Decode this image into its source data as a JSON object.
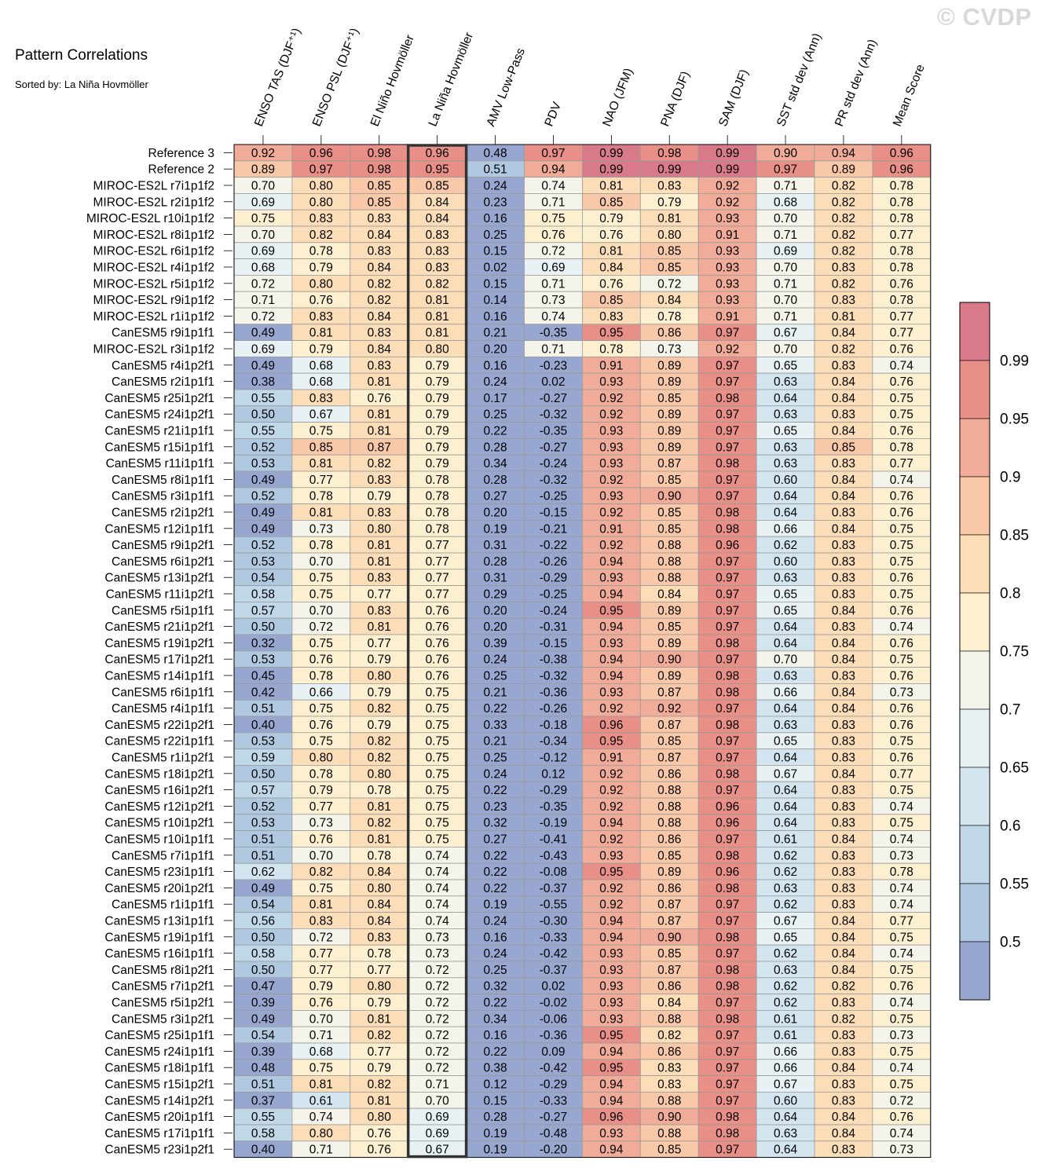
{
  "title": "Pattern Correlations",
  "subtitle": "Sorted by: La Niña Hovmöller",
  "watermark": "© CVDP",
  "chart_data": {
    "type": "heatmap",
    "highlighted_column": "La Niña Hovmöller",
    "columns": [
      "ENSO TAS (DJF⁺¹)",
      "ENSO PSL (DJF⁺¹)",
      "El Niño Hovmöller",
      "La Niña Hovmöller",
      "AMV Low-Pass",
      "PDV",
      "NAO (JFM)",
      "PNA (DJF)",
      "SAM (DJF)",
      "SST std dev (Ann)",
      "PR std dev (Ann)",
      "Mean Score"
    ],
    "rows": [
      {
        "name": "Reference 3",
        "values": [
          0.92,
          0.96,
          0.98,
          0.96,
          0.48,
          0.97,
          0.99,
          0.98,
          0.99,
          0.9,
          0.94,
          0.96
        ]
      },
      {
        "name": "Reference 2",
        "values": [
          0.89,
          0.97,
          0.98,
          0.95,
          0.51,
          0.94,
          0.99,
          0.99,
          0.99,
          0.97,
          0.89,
          0.96
        ]
      },
      {
        "name": "MIROC-ES2L r7i1p1f2",
        "values": [
          0.7,
          0.8,
          0.85,
          0.85,
          0.24,
          0.74,
          0.81,
          0.83,
          0.92,
          0.71,
          0.82,
          0.78
        ]
      },
      {
        "name": "MIROC-ES2L r2i1p1f2",
        "values": [
          0.69,
          0.8,
          0.85,
          0.84,
          0.23,
          0.71,
          0.85,
          0.79,
          0.92,
          0.68,
          0.82,
          0.78
        ]
      },
      {
        "name": "MIROC-ES2L r10i1p1f2",
        "values": [
          0.75,
          0.83,
          0.83,
          0.84,
          0.16,
          0.75,
          0.79,
          0.81,
          0.93,
          0.7,
          0.82,
          0.78
        ]
      },
      {
        "name": "MIROC-ES2L r8i1p1f2",
        "values": [
          0.7,
          0.82,
          0.84,
          0.83,
          0.25,
          0.76,
          0.76,
          0.8,
          0.91,
          0.71,
          0.82,
          0.77
        ]
      },
      {
        "name": "MIROC-ES2L r6i1p1f2",
        "values": [
          0.69,
          0.78,
          0.83,
          0.83,
          0.15,
          0.72,
          0.81,
          0.85,
          0.93,
          0.69,
          0.82,
          0.78
        ]
      },
      {
        "name": "MIROC-ES2L r4i1p1f2",
        "values": [
          0.68,
          0.79,
          0.84,
          0.83,
          0.02,
          0.69,
          0.84,
          0.85,
          0.93,
          0.7,
          0.83,
          0.78
        ]
      },
      {
        "name": "MIROC-ES2L r5i1p1f2",
        "values": [
          0.72,
          0.8,
          0.82,
          0.82,
          0.15,
          0.71,
          0.76,
          0.72,
          0.93,
          0.71,
          0.82,
          0.76
        ]
      },
      {
        "name": "MIROC-ES2L r9i1p1f2",
        "values": [
          0.71,
          0.76,
          0.82,
          0.81,
          0.14,
          0.73,
          0.85,
          0.84,
          0.93,
          0.7,
          0.83,
          0.78
        ]
      },
      {
        "name": "MIROC-ES2L r1i1p1f2",
        "values": [
          0.72,
          0.83,
          0.84,
          0.81,
          0.16,
          0.74,
          0.83,
          0.78,
          0.91,
          0.71,
          0.81,
          0.77
        ]
      },
      {
        "name": "CanESM5 r9i1p1f1",
        "values": [
          0.49,
          0.81,
          0.83,
          0.81,
          0.21,
          -0.35,
          0.95,
          0.86,
          0.97,
          0.67,
          0.84,
          0.77
        ]
      },
      {
        "name": "MIROC-ES2L r3i1p1f2",
        "values": [
          0.69,
          0.79,
          0.84,
          0.8,
          0.2,
          0.71,
          0.78,
          0.73,
          0.92,
          0.7,
          0.82,
          0.76
        ]
      },
      {
        "name": "CanESM5 r4i1p2f1",
        "values": [
          0.49,
          0.68,
          0.83,
          0.79,
          0.16,
          -0.23,
          0.91,
          0.89,
          0.97,
          0.65,
          0.83,
          0.74
        ]
      },
      {
        "name": "CanESM5 r2i1p1f1",
        "values": [
          0.38,
          0.68,
          0.81,
          0.79,
          0.24,
          0.02,
          0.93,
          0.89,
          0.97,
          0.63,
          0.84,
          0.76
        ]
      },
      {
        "name": "CanESM5 r25i1p2f1",
        "values": [
          0.55,
          0.83,
          0.76,
          0.79,
          0.17,
          -0.27,
          0.92,
          0.85,
          0.98,
          0.64,
          0.84,
          0.75
        ]
      },
      {
        "name": "CanESM5 r24i1p2f1",
        "values": [
          0.5,
          0.67,
          0.81,
          0.79,
          0.25,
          -0.32,
          0.92,
          0.89,
          0.97,
          0.63,
          0.83,
          0.75
        ]
      },
      {
        "name": "CanESM5 r21i1p1f1",
        "values": [
          0.55,
          0.75,
          0.81,
          0.79,
          0.22,
          -0.35,
          0.93,
          0.89,
          0.97,
          0.65,
          0.84,
          0.76
        ]
      },
      {
        "name": "CanESM5 r15i1p1f1",
        "values": [
          0.52,
          0.85,
          0.87,
          0.79,
          0.28,
          -0.27,
          0.93,
          0.89,
          0.97,
          0.63,
          0.85,
          0.78
        ]
      },
      {
        "name": "CanESM5 r11i1p1f1",
        "values": [
          0.53,
          0.81,
          0.82,
          0.79,
          0.34,
          -0.24,
          0.93,
          0.87,
          0.98,
          0.63,
          0.83,
          0.77
        ]
      },
      {
        "name": "CanESM5 r8i1p1f1",
        "values": [
          0.49,
          0.77,
          0.83,
          0.78,
          0.28,
          -0.32,
          0.92,
          0.85,
          0.97,
          0.6,
          0.84,
          0.74
        ]
      },
      {
        "name": "CanESM5 r3i1p1f1",
        "values": [
          0.52,
          0.78,
          0.79,
          0.78,
          0.27,
          -0.25,
          0.93,
          0.9,
          0.97,
          0.64,
          0.84,
          0.76
        ]
      },
      {
        "name": "CanESM5 r2i1p2f1",
        "values": [
          0.49,
          0.81,
          0.83,
          0.78,
          0.2,
          -0.15,
          0.92,
          0.85,
          0.98,
          0.64,
          0.83,
          0.76
        ]
      },
      {
        "name": "CanESM5 r12i1p1f1",
        "values": [
          0.49,
          0.73,
          0.8,
          0.78,
          0.19,
          -0.21,
          0.91,
          0.85,
          0.98,
          0.66,
          0.84,
          0.75
        ]
      },
      {
        "name": "CanESM5 r9i1p2f1",
        "values": [
          0.52,
          0.78,
          0.81,
          0.77,
          0.31,
          -0.22,
          0.92,
          0.88,
          0.96,
          0.62,
          0.83,
          0.75
        ]
      },
      {
        "name": "CanESM5 r6i1p2f1",
        "values": [
          0.53,
          0.7,
          0.81,
          0.77,
          0.28,
          -0.26,
          0.94,
          0.88,
          0.97,
          0.6,
          0.83,
          0.75
        ]
      },
      {
        "name": "CanESM5 r13i1p2f1",
        "values": [
          0.54,
          0.75,
          0.83,
          0.77,
          0.31,
          -0.29,
          0.93,
          0.88,
          0.97,
          0.63,
          0.83,
          0.76
        ]
      },
      {
        "name": "CanESM5 r11i1p2f1",
        "values": [
          0.58,
          0.75,
          0.77,
          0.77,
          0.29,
          -0.25,
          0.94,
          0.84,
          0.97,
          0.65,
          0.83,
          0.75
        ]
      },
      {
        "name": "CanESM5 r5i1p1f1",
        "values": [
          0.57,
          0.7,
          0.83,
          0.76,
          0.2,
          -0.24,
          0.95,
          0.89,
          0.97,
          0.65,
          0.84,
          0.76
        ]
      },
      {
        "name": "CanESM5 r21i1p2f1",
        "values": [
          0.5,
          0.72,
          0.81,
          0.76,
          0.2,
          -0.31,
          0.94,
          0.85,
          0.97,
          0.64,
          0.83,
          0.74
        ]
      },
      {
        "name": "CanESM5 r19i1p2f1",
        "values": [
          0.32,
          0.75,
          0.77,
          0.76,
          0.39,
          -0.15,
          0.93,
          0.89,
          0.98,
          0.64,
          0.84,
          0.76
        ]
      },
      {
        "name": "CanESM5 r17i1p2f1",
        "values": [
          0.53,
          0.76,
          0.79,
          0.76,
          0.24,
          -0.38,
          0.94,
          0.9,
          0.97,
          0.7,
          0.84,
          0.75
        ]
      },
      {
        "name": "CanESM5 r14i1p1f1",
        "values": [
          0.45,
          0.78,
          0.8,
          0.76,
          0.25,
          -0.32,
          0.94,
          0.89,
          0.98,
          0.63,
          0.83,
          0.76
        ]
      },
      {
        "name": "CanESM5 r6i1p1f1",
        "values": [
          0.42,
          0.66,
          0.79,
          0.75,
          0.21,
          -0.36,
          0.93,
          0.87,
          0.98,
          0.66,
          0.84,
          0.73
        ]
      },
      {
        "name": "CanESM5 r4i1p1f1",
        "values": [
          0.51,
          0.75,
          0.82,
          0.75,
          0.22,
          -0.26,
          0.92,
          0.92,
          0.97,
          0.64,
          0.84,
          0.76
        ]
      },
      {
        "name": "CanESM5 r22i1p2f1",
        "values": [
          0.4,
          0.76,
          0.79,
          0.75,
          0.33,
          -0.18,
          0.96,
          0.87,
          0.98,
          0.63,
          0.83,
          0.76
        ]
      },
      {
        "name": "CanESM5 r22i1p1f1",
        "values": [
          0.53,
          0.75,
          0.82,
          0.75,
          0.21,
          -0.34,
          0.95,
          0.85,
          0.97,
          0.65,
          0.83,
          0.75
        ]
      },
      {
        "name": "CanESM5 r1i1p2f1",
        "values": [
          0.59,
          0.8,
          0.82,
          0.75,
          0.25,
          -0.12,
          0.91,
          0.87,
          0.97,
          0.64,
          0.83,
          0.76
        ]
      },
      {
        "name": "CanESM5 r18i1p2f1",
        "values": [
          0.5,
          0.78,
          0.8,
          0.75,
          0.24,
          0.12,
          0.92,
          0.86,
          0.98,
          0.67,
          0.84,
          0.77
        ]
      },
      {
        "name": "CanESM5 r16i1p2f1",
        "values": [
          0.57,
          0.79,
          0.78,
          0.75,
          0.22,
          -0.29,
          0.92,
          0.88,
          0.97,
          0.64,
          0.83,
          0.75
        ]
      },
      {
        "name": "CanESM5 r12i1p2f1",
        "values": [
          0.52,
          0.77,
          0.81,
          0.75,
          0.23,
          -0.35,
          0.92,
          0.88,
          0.96,
          0.64,
          0.83,
          0.74
        ]
      },
      {
        "name": "CanESM5 r10i1p2f1",
        "values": [
          0.53,
          0.73,
          0.82,
          0.75,
          0.32,
          -0.19,
          0.94,
          0.88,
          0.96,
          0.64,
          0.83,
          0.75
        ]
      },
      {
        "name": "CanESM5 r10i1p1f1",
        "values": [
          0.51,
          0.76,
          0.81,
          0.75,
          0.27,
          -0.41,
          0.92,
          0.86,
          0.97,
          0.61,
          0.84,
          0.74
        ]
      },
      {
        "name": "CanESM5 r7i1p1f1",
        "values": [
          0.51,
          0.7,
          0.78,
          0.74,
          0.22,
          -0.43,
          0.93,
          0.85,
          0.98,
          0.62,
          0.83,
          0.73
        ]
      },
      {
        "name": "CanESM5 r23i1p1f1",
        "values": [
          0.62,
          0.82,
          0.84,
          0.74,
          0.22,
          -0.08,
          0.95,
          0.89,
          0.96,
          0.62,
          0.83,
          0.78
        ]
      },
      {
        "name": "CanESM5 r20i1p2f1",
        "values": [
          0.49,
          0.75,
          0.8,
          0.74,
          0.22,
          -0.37,
          0.92,
          0.86,
          0.98,
          0.63,
          0.83,
          0.74
        ]
      },
      {
        "name": "CanESM5 r1i1p1f1",
        "values": [
          0.54,
          0.81,
          0.84,
          0.74,
          0.19,
          -0.55,
          0.92,
          0.87,
          0.97,
          0.62,
          0.83,
          0.74
        ]
      },
      {
        "name": "CanESM5 r13i1p1f1",
        "values": [
          0.56,
          0.83,
          0.84,
          0.74,
          0.24,
          -0.3,
          0.94,
          0.87,
          0.97,
          0.67,
          0.84,
          0.77
        ]
      },
      {
        "name": "CanESM5 r19i1p1f1",
        "values": [
          0.5,
          0.72,
          0.83,
          0.73,
          0.16,
          -0.33,
          0.94,
          0.9,
          0.98,
          0.65,
          0.84,
          0.75
        ]
      },
      {
        "name": "CanESM5 r16i1p1f1",
        "values": [
          0.58,
          0.77,
          0.78,
          0.73,
          0.24,
          -0.42,
          0.93,
          0.85,
          0.97,
          0.62,
          0.84,
          0.74
        ]
      },
      {
        "name": "CanESM5 r8i1p2f1",
        "values": [
          0.5,
          0.77,
          0.77,
          0.72,
          0.25,
          -0.37,
          0.93,
          0.87,
          0.98,
          0.63,
          0.84,
          0.75
        ]
      },
      {
        "name": "CanESM5 r7i1p2f1",
        "values": [
          0.47,
          0.79,
          0.8,
          0.72,
          0.32,
          0.02,
          0.93,
          0.86,
          0.98,
          0.62,
          0.82,
          0.76
        ]
      },
      {
        "name": "CanESM5 r5i1p2f1",
        "values": [
          0.39,
          0.76,
          0.79,
          0.72,
          0.22,
          -0.02,
          0.93,
          0.84,
          0.97,
          0.62,
          0.83,
          0.74
        ]
      },
      {
        "name": "CanESM5 r3i1p2f1",
        "values": [
          0.49,
          0.7,
          0.81,
          0.72,
          0.34,
          -0.06,
          0.93,
          0.88,
          0.98,
          0.61,
          0.82,
          0.75
        ]
      },
      {
        "name": "CanESM5 r25i1p1f1",
        "values": [
          0.54,
          0.71,
          0.82,
          0.72,
          0.16,
          -0.36,
          0.95,
          0.82,
          0.97,
          0.61,
          0.83,
          0.73
        ]
      },
      {
        "name": "CanESM5 r24i1p1f1",
        "values": [
          0.39,
          0.68,
          0.77,
          0.72,
          0.22,
          0.09,
          0.94,
          0.86,
          0.97,
          0.66,
          0.83,
          0.75
        ]
      },
      {
        "name": "CanESM5 r18i1p1f1",
        "values": [
          0.48,
          0.75,
          0.79,
          0.72,
          0.38,
          -0.42,
          0.95,
          0.83,
          0.97,
          0.66,
          0.84,
          0.74
        ]
      },
      {
        "name": "CanESM5 r15i1p2f1",
        "values": [
          0.51,
          0.81,
          0.82,
          0.71,
          0.12,
          -0.29,
          0.94,
          0.83,
          0.97,
          0.67,
          0.83,
          0.75
        ]
      },
      {
        "name": "CanESM5 r14i1p2f1",
        "values": [
          0.37,
          0.61,
          0.81,
          0.7,
          0.15,
          -0.33,
          0.94,
          0.88,
          0.97,
          0.6,
          0.83,
          0.72
        ]
      },
      {
        "name": "CanESM5 r20i1p1f1",
        "values": [
          0.55,
          0.74,
          0.8,
          0.69,
          0.28,
          -0.27,
          0.96,
          0.9,
          0.98,
          0.64,
          0.84,
          0.76
        ]
      },
      {
        "name": "CanESM5 r17i1p1f1",
        "values": [
          0.58,
          0.8,
          0.76,
          0.69,
          0.19,
          -0.48,
          0.93,
          0.88,
          0.98,
          0.63,
          0.84,
          0.74
        ]
      },
      {
        "name": "CanESM5 r23i1p2f1",
        "values": [
          0.4,
          0.71,
          0.76,
          0.67,
          0.19,
          -0.2,
          0.94,
          0.85,
          0.97,
          0.64,
          0.83,
          0.73
        ]
      }
    ],
    "colorbar": {
      "labels": [
        "0.5",
        "0.55",
        "0.6",
        "0.65",
        "0.7",
        "0.75",
        "0.8",
        "0.85",
        "0.9",
        "0.95",
        "0.99"
      ],
      "thresholds": [
        0.5,
        0.55,
        0.6,
        0.65,
        0.7,
        0.75,
        0.8,
        0.85,
        0.9,
        0.95,
        0.99
      ],
      "colors": [
        "#98a7cf",
        "#b0c8e0",
        "#c0d8e8",
        "#d3e6f0",
        "#e8f1f4",
        "#f4f4ea",
        "#fcf0d0",
        "#fbddb8",
        "#f8c8a8",
        "#f0ac98",
        "#e88f88",
        "#d87a8a"
      ]
    }
  }
}
